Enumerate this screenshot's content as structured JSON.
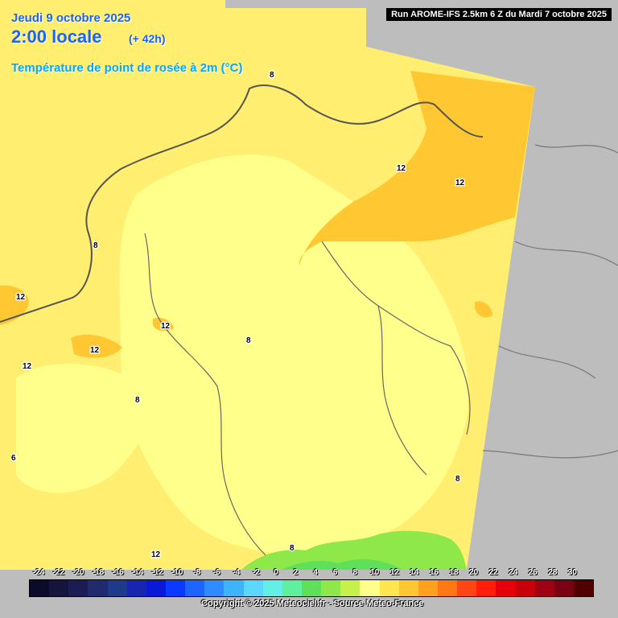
{
  "header": {
    "date": "Jeudi 9 octobre 2025",
    "time": "2:00 locale",
    "lead": "(+ 42h)",
    "parameter": "Température de point de rosée à 2m (°C)"
  },
  "run_banner": "Run AROME-IFS 2.5km 6 Z du Mardi 7 octobre 2025",
  "contour_labels": [
    "8",
    "12",
    "12",
    "12",
    "12",
    "12",
    "12",
    "8",
    "8",
    "8",
    "6",
    "8",
    "8",
    "12"
  ],
  "legend": {
    "ticks": [
      "-24",
      "-22",
      "-20",
      "-18",
      "-16",
      "-14",
      "-12",
      "-10",
      "-8",
      "-6",
      "-4",
      "-2",
      "0",
      "2",
      "4",
      "6",
      "8",
      "10",
      "12",
      "14",
      "16",
      "18",
      "20",
      "22",
      "24",
      "26",
      "28",
      "30"
    ],
    "colors": [
      "#0a0a2a",
      "#14143c",
      "#1c1c55",
      "#202a6e",
      "#1e3a8a",
      "#1626b0",
      "#0a18d8",
      "#0a3aff",
      "#1e64ff",
      "#2e8cff",
      "#3cb4ff",
      "#5ad8ff",
      "#62f0e6",
      "#5ef09e",
      "#5ee05a",
      "#8ee84a",
      "#c8f04a",
      "#ffff8c",
      "#ffe650",
      "#ffc832",
      "#ffa01e",
      "#ff7814",
      "#ff4614",
      "#ff1e0a",
      "#e6000a",
      "#c8000a",
      "#a00014",
      "#7a0014",
      "#500000"
    ]
  },
  "colors": {
    "sea": "#ffee70",
    "land_low": "#ffff8c",
    "land_mid": "#ffe650",
    "land_high": "#ffc832",
    "green": "#8ee84a",
    "outside": "#bdbdbd"
  },
  "copyright": "Copyright © 2025 Meteociel.fr - Source Meteo-France"
}
